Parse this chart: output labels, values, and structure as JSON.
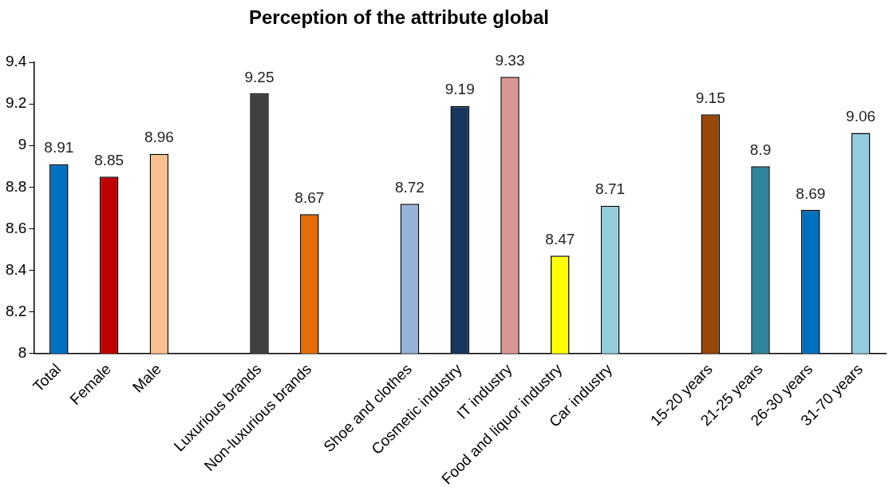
{
  "chart_data": {
    "type": "bar",
    "title": "Perception of the attribute global",
    "categories": [
      "Total",
      "Female",
      "Male",
      null,
      "Luxurious brands",
      "Non-luxurious brands",
      null,
      "Shoe and clothes",
      "Cosmetic industry",
      "IT industry",
      "Food and liquor industry",
      "Car industry",
      null,
      "15-20 years",
      "21-25 years",
      "26-30 years",
      "31-70 years"
    ],
    "values": [
      8.91,
      8.85,
      8.96,
      null,
      9.25,
      8.67,
      null,
      8.72,
      9.19,
      9.33,
      8.47,
      8.71,
      null,
      9.15,
      8.9,
      8.69,
      9.06
    ],
    "colors": [
      "#0070c0",
      "#c00000",
      "#fac090",
      "#000000",
      "#404040",
      "#e46c0a",
      "#000000",
      "#95b3d7",
      "#17375e",
      "#d99694",
      "#ffff00",
      "#92cddc",
      "#000000",
      "#974806",
      "#31859c",
      "#0070c0",
      "#93cddd"
    ],
    "ylim": [
      8,
      9.4
    ],
    "yticks": [
      8,
      8.2,
      8.4,
      8.6,
      8.8,
      9,
      9.2,
      9.4
    ],
    "grid": false,
    "legend": false,
    "data_labels": true
  }
}
